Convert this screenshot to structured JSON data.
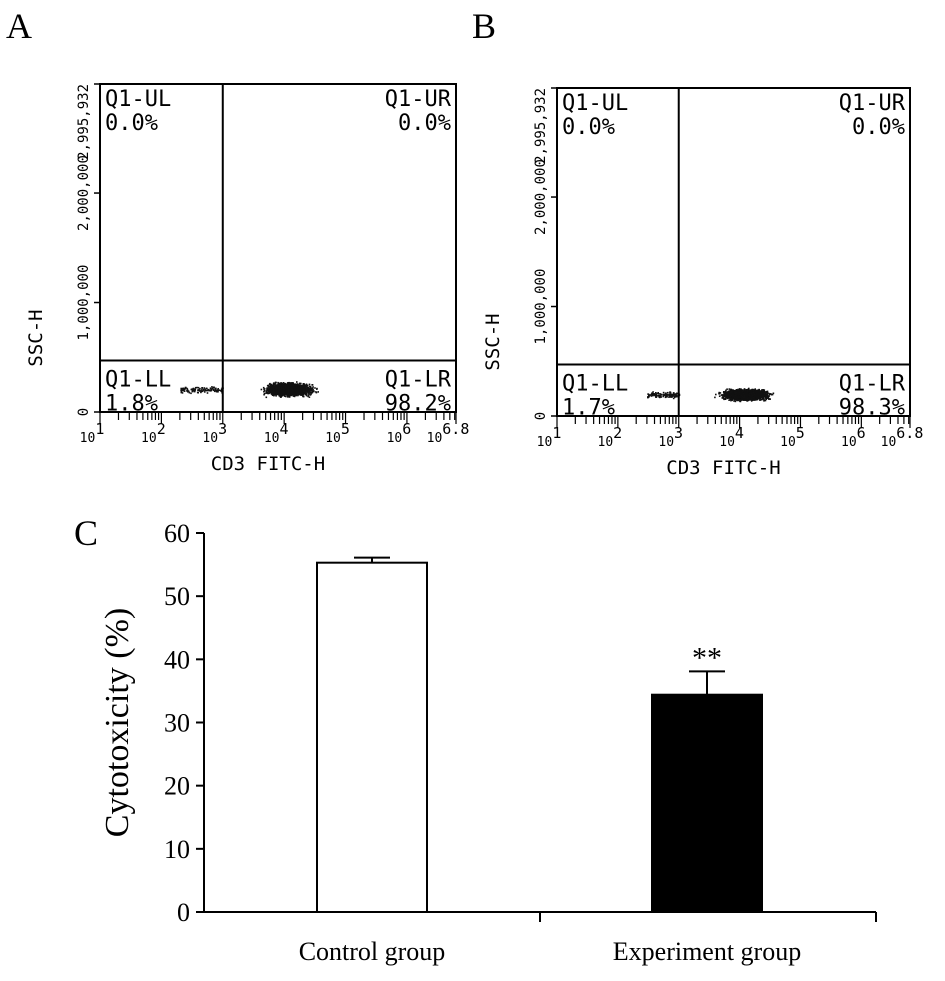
{
  "chart_data": [
    {
      "panel": "A",
      "type": "scatter",
      "xlabel": "CD3 FITC-H",
      "ylabel": "SSC-H",
      "x_scale": "log",
      "xlim": [
        10,
        6300000
      ],
      "ylim": [
        0,
        2995932
      ],
      "x_tick_labels": [
        "10^1",
        "10^2",
        "10^3",
        "10^4",
        "10^5",
        "10^6",
        "10^6.8"
      ],
      "y_tick_labels": [
        "0",
        "1,000,000",
        "2,000,000",
        "2,995,932"
      ],
      "gate_x": 1000,
      "gate_y": 470000,
      "quadrants": [
        {
          "name": "Q1-UL",
          "value": "0.0%"
        },
        {
          "name": "Q1-UR",
          "value": "0.0%"
        },
        {
          "name": "Q1-LL",
          "value": "1.8%"
        },
        {
          "name": "Q1-LR",
          "value": "98.2%"
        }
      ],
      "population": {
        "x_center": 12000,
        "x_min": 200,
        "x_max": 60000,
        "y_center": 210000,
        "y_spread": 80000
      }
    },
    {
      "panel": "B",
      "type": "scatter",
      "xlabel": "CD3 FITC-H",
      "ylabel": "SSC-H",
      "x_scale": "log",
      "xlim": [
        10,
        6300000
      ],
      "ylim": [
        0,
        2995932
      ],
      "x_tick_labels": [
        "10^1",
        "10^2",
        "10^3",
        "10^4",
        "10^5",
        "10^6",
        "10^6.8"
      ],
      "y_tick_labels": [
        "0",
        "1,000,000",
        "2,000,000",
        "2,995,932"
      ],
      "gate_x": 1000,
      "gate_y": 470000,
      "quadrants": [
        {
          "name": "Q1-UL",
          "value": "0.0%"
        },
        {
          "name": "Q1-UR",
          "value": "0.0%"
        },
        {
          "name": "Q1-LL",
          "value": "1.7%"
        },
        {
          "name": "Q1-LR",
          "value": "98.3%"
        }
      ],
      "population": {
        "x_center": 12000,
        "x_min": 300,
        "x_max": 50000,
        "y_center": 200000,
        "y_spread": 70000
      }
    },
    {
      "panel": "C",
      "type": "bar",
      "categories": [
        "Control group",
        "Experiment group"
      ],
      "values": [
        55.3,
        34.4
      ],
      "errors": [
        0.8,
        3.7
      ],
      "fill_colors": [
        "#ffffff",
        "#000000"
      ],
      "annotations": [
        "",
        "**"
      ],
      "ylabel": "Cytotoxicity (%)",
      "ylim": [
        0,
        60
      ],
      "y_ticks": [
        0,
        10,
        20,
        30,
        40,
        50,
        60
      ]
    }
  ]
}
